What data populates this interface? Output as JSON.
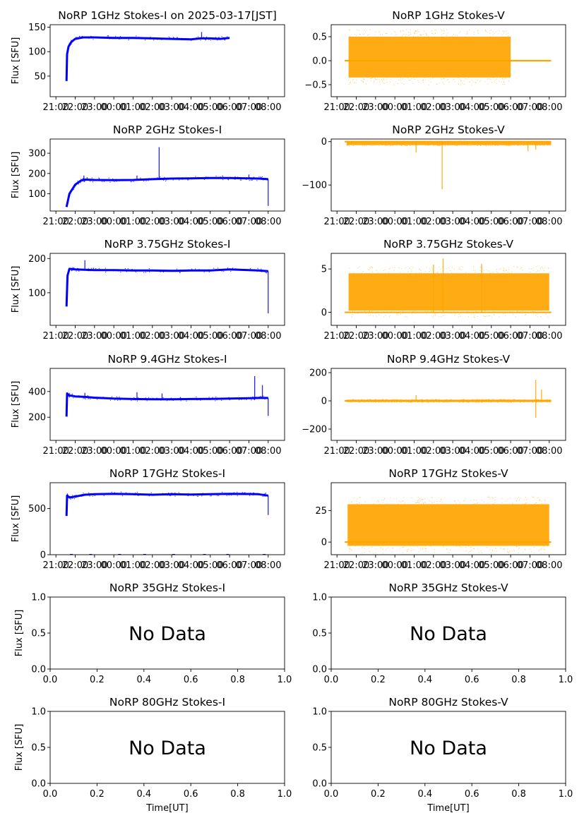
{
  "colors": {
    "stokes_i": "#0000ff",
    "stokes_v": "#ffa500"
  },
  "chart_data": [
    {
      "type": "scatter",
      "panel": "1GHz-I",
      "title": "NoRP 1GHz Stokes-I on 2025-03-17[JST]",
      "ylabel": "Flux [SFU]",
      "xlabel": "",
      "xlim": [
        -3.3,
        8.85
      ],
      "ylim": [
        8,
        155
      ],
      "yticks": [
        50,
        100,
        150
      ],
      "xtick_values": [
        -3,
        -2,
        -1,
        0,
        1,
        2,
        3,
        4,
        5,
        6,
        7,
        8
      ],
      "xtick_labels": [
        "21:00",
        "22:00",
        "23:00",
        "00:00",
        "01:00",
        "02:00",
        "03:00",
        "04:00",
        "05:00",
        "06:00",
        "07:00",
        "08:00"
      ],
      "series": [
        {
          "color": "#0000ff",
          "x": [
            -2.45,
            -2.42,
            -2.35,
            -2.2,
            -2.0,
            -1.6,
            -1.0,
            0,
            1,
            2,
            3,
            4,
            4.5,
            5,
            5.5,
            6.0
          ],
          "y": [
            40,
            95,
            110,
            120,
            126,
            129,
            129,
            128,
            128,
            127,
            126,
            125,
            127,
            127,
            126,
            128
          ]
        }
      ],
      "spikes": [
        {
          "x": 4.55,
          "y": 140
        }
      ]
    },
    {
      "type": "scatter",
      "panel": "1GHz-V",
      "title": "NoRP 1GHz Stokes-V",
      "ylabel": "",
      "xlabel": "",
      "xlim": [
        -3.3,
        8.85
      ],
      "ylim": [
        -0.75,
        0.75
      ],
      "yticks": [
        -0.5,
        0.0,
        0.5
      ],
      "ytick_labels": [
        "−0.5",
        "0.0",
        "0.5"
      ],
      "xtick_values": [
        -3,
        -2,
        -1,
        0,
        1,
        2,
        3,
        4,
        5,
        6,
        7,
        8
      ],
      "xtick_labels": [
        "21:00",
        "22:00",
        "23:00",
        "00:00",
        "01:00",
        "02:00",
        "03:00",
        "04:00",
        "05:00",
        "06:00",
        "07:00",
        "08:00"
      ],
      "band": {
        "color": "#ffa500",
        "x": [
          -2.4,
          6.0
        ],
        "y": [
          -0.35,
          0.5
        ],
        "baseline": 0.0,
        "baseline_x": [
          -2.6,
          8.1
        ]
      }
    },
    {
      "type": "scatter",
      "panel": "2GHz-I",
      "title": "NoRP 2GHz Stokes-I",
      "ylabel": "Flux [SFU]",
      "xlabel": "",
      "xlim": [
        -3.3,
        8.85
      ],
      "ylim": [
        15,
        370
      ],
      "yticks": [
        100,
        200,
        300
      ],
      "xtick_values": [
        -3,
        -2,
        -1,
        0,
        1,
        2,
        3,
        4,
        5,
        6,
        7,
        8
      ],
      "xtick_labels": [
        "21:00",
        "22:00",
        "23:00",
        "00:00",
        "01:00",
        "02:00",
        "03:00",
        "04:00",
        "05:00",
        "06:00",
        "07:00",
        "08:00"
      ],
      "series": [
        {
          "color": "#0000ff",
          "x": [
            -2.45,
            -2.3,
            -2.0,
            -1.7,
            -1.5,
            -1.0,
            0,
            1,
            2,
            3,
            4,
            5,
            6,
            7,
            7.5,
            8.0
          ],
          "y": [
            35,
            100,
            145,
            165,
            170,
            168,
            167,
            168,
            172,
            175,
            176,
            178,
            178,
            176,
            175,
            172
          ]
        }
      ],
      "spikes": [
        {
          "x": -1.55,
          "y": 190
        },
        {
          "x": 1.2,
          "y": 190
        },
        {
          "x": 2.35,
          "y": 330
        },
        {
          "x": 7.0,
          "y": 195
        },
        {
          "x": 8.0,
          "y": 40
        }
      ]
    },
    {
      "type": "scatter",
      "panel": "2GHz-V",
      "title": "NoRP 2GHz Stokes-V",
      "ylabel": "",
      "xlabel": "",
      "xlim": [
        -3.3,
        8.85
      ],
      "ylim": [
        -160,
        6
      ],
      "yticks": [
        -100,
        0
      ],
      "ytick_labels": [
        "−100",
        "0"
      ],
      "xtick_values": [
        -3,
        -2,
        -1,
        0,
        1,
        2,
        3,
        4,
        5,
        6,
        7,
        8
      ],
      "xtick_labels": [
        "21:00",
        "22:00",
        "23:00",
        "00:00",
        "01:00",
        "02:00",
        "03:00",
        "04:00",
        "05:00",
        "06:00",
        "07:00",
        "08:00"
      ],
      "band": {
        "color": "#ffa500",
        "x": [
          -2.5,
          8.1
        ],
        "y": [
          -8,
          0
        ],
        "baseline": 0,
        "baseline_x": [
          -2.6,
          8.1
        ]
      },
      "spikes": [
        {
          "x": 1.1,
          "y": -25
        },
        {
          "x": 2.45,
          "y": -110
        },
        {
          "x": 6.9,
          "y": -22
        },
        {
          "x": 7.3,
          "y": -18
        }
      ]
    },
    {
      "type": "scatter",
      "panel": "3.75GHz-I",
      "title": "NoRP 3.75GHz Stokes-I",
      "ylabel": "Flux [SFU]",
      "xlabel": "",
      "xlim": [
        -3.3,
        8.85
      ],
      "ylim": [
        5,
        215
      ],
      "yticks": [
        100,
        200
      ],
      "xtick_values": [
        -3,
        -2,
        -1,
        0,
        1,
        2,
        3,
        4,
        5,
        6,
        7,
        8
      ],
      "xtick_labels": [
        "21:00",
        "22:00",
        "23:00",
        "00:00",
        "01:00",
        "02:00",
        "03:00",
        "04:00",
        "05:00",
        "06:00",
        "07:00",
        "08:00"
      ],
      "series": [
        {
          "color": "#0000ff",
          "x": [
            -2.45,
            -2.4,
            -2.3,
            -2.0,
            -1.5,
            -1.0,
            0,
            1,
            2,
            3,
            4,
            5,
            6,
            7,
            7.5,
            8.0
          ],
          "y": [
            60,
            150,
            170,
            168,
            167,
            166,
            166,
            165,
            165,
            164,
            165,
            165,
            168,
            166,
            165,
            163
          ]
        }
      ],
      "spikes": [
        {
          "x": -1.5,
          "y": 195
        },
        {
          "x": 8.0,
          "y": 40
        }
      ]
    },
    {
      "type": "scatter",
      "panel": "3.75GHz-V",
      "title": "NoRP 3.75GHz Stokes-V",
      "ylabel": "",
      "xlabel": "",
      "xlim": [
        -3.3,
        8.85
      ],
      "ylim": [
        -1.5,
        6.8
      ],
      "yticks": [
        0,
        5
      ],
      "xtick_values": [
        -3,
        -2,
        -1,
        0,
        1,
        2,
        3,
        4,
        5,
        6,
        7,
        8
      ],
      "xtick_labels": [
        "21:00",
        "22:00",
        "23:00",
        "00:00",
        "01:00",
        "02:00",
        "03:00",
        "04:00",
        "05:00",
        "06:00",
        "07:00",
        "08:00"
      ],
      "band": {
        "color": "#ffa500",
        "x": [
          -2.4,
          8.0
        ],
        "y": [
          0.2,
          4.5
        ],
        "baseline": 0,
        "baseline_x": [
          -2.6,
          8.1
        ]
      },
      "spikes": [
        {
          "x": 2.5,
          "y": 6.2
        },
        {
          "x": 2.0,
          "y": 5.5
        },
        {
          "x": 4.5,
          "y": 5.6
        }
      ]
    },
    {
      "type": "scatter",
      "panel": "9.4GHz-I",
      "title": "NoRP 9.4GHz Stokes-I",
      "ylabel": "Flux [SFU]",
      "xlabel": "",
      "xlim": [
        -3.3,
        8.85
      ],
      "ylim": [
        20,
        580
      ],
      "yticks": [
        200,
        400
      ],
      "xtick_values": [
        -3,
        -2,
        -1,
        0,
        1,
        2,
        3,
        4,
        5,
        6,
        7,
        8
      ],
      "xtick_labels": [
        "21:00",
        "22:00",
        "23:00",
        "00:00",
        "01:00",
        "02:00",
        "03:00",
        "04:00",
        "05:00",
        "06:00",
        "07:00",
        "08:00"
      ],
      "series": [
        {
          "color": "#0000ff",
          "x": [
            -2.45,
            -2.42,
            -2.3,
            -2.0,
            -1.5,
            -1.0,
            0,
            1,
            2,
            3,
            4,
            5,
            6,
            7,
            7.5,
            8.0
          ],
          "y": [
            205,
            385,
            370,
            362,
            358,
            352,
            345,
            342,
            340,
            340,
            342,
            343,
            345,
            348,
            350,
            350
          ]
        }
      ],
      "spikes": [
        {
          "x": -1.5,
          "y": 390
        },
        {
          "x": 1.2,
          "y": 395
        },
        {
          "x": 2.5,
          "y": 385
        },
        {
          "x": 7.3,
          "y": 520
        },
        {
          "x": 7.7,
          "y": 450
        },
        {
          "x": 8.0,
          "y": 210
        }
      ]
    },
    {
      "type": "scatter",
      "panel": "9.4GHz-V",
      "title": "NoRP 9.4GHz Stokes-V",
      "ylabel": "",
      "xlabel": "",
      "xlim": [
        -3.3,
        8.85
      ],
      "ylim": [
        -280,
        230
      ],
      "yticks": [
        -200,
        0,
        200
      ],
      "ytick_labels": [
        "−200",
        "0",
        "200"
      ],
      "xtick_values": [
        -3,
        -2,
        -1,
        0,
        1,
        2,
        3,
        4,
        5,
        6,
        7,
        8
      ],
      "xtick_labels": [
        "21:00",
        "22:00",
        "23:00",
        "00:00",
        "01:00",
        "02:00",
        "03:00",
        "04:00",
        "05:00",
        "06:00",
        "07:00",
        "08:00"
      ],
      "band": {
        "color": "#ffa500",
        "x": [
          -2.5,
          8.1
        ],
        "y": [
          -8,
          8
        ],
        "baseline": 0,
        "baseline_x": [
          -2.6,
          8.1
        ]
      },
      "spikes": [
        {
          "x": 7.3,
          "y": 150
        },
        {
          "x": 7.3,
          "y": -120
        },
        {
          "x": 7.6,
          "y": 80
        },
        {
          "x": 1.1,
          "y": 40
        }
      ]
    },
    {
      "type": "scatter",
      "panel": "17GHz-I",
      "title": "NoRP 17GHz Stokes-I",
      "ylabel": "Flux [SFU]",
      "xlabel": "",
      "xlim": [
        -3.3,
        8.85
      ],
      "ylim": [
        0,
        780
      ],
      "yticks": [
        0,
        500
      ],
      "xtick_values": [
        -3,
        -2,
        -1,
        0,
        1,
        2,
        3,
        4,
        5,
        6,
        7,
        8
      ],
      "xtick_labels": [
        "21:00",
        "22:00",
        "23:00",
        "00:00",
        "01:00",
        "02:00",
        "03:00",
        "04:00",
        "05:00",
        "06:00",
        "07:00",
        "08:00"
      ],
      "series": [
        {
          "color": "#0000ff",
          "x": [
            -2.45,
            -2.42,
            -2.3,
            -2.0,
            -1.5,
            -1.0,
            0,
            1,
            2,
            3,
            4,
            5,
            6,
            7,
            7.5,
            8.0
          ],
          "y": [
            420,
            640,
            620,
            630,
            650,
            655,
            660,
            655,
            650,
            655,
            652,
            655,
            660,
            658,
            655,
            640
          ]
        }
      ],
      "spikes": [
        {
          "x": 8.0,
          "y": 430
        }
      ],
      "zero_dots": [
        -2.2,
        -1.2,
        0.3,
        1.6,
        3.1,
        4.7,
        5.9,
        7.8
      ]
    },
    {
      "type": "scatter",
      "panel": "17GHz-V",
      "title": "NoRP 17GHz Stokes-V",
      "ylabel": "",
      "xlabel": "",
      "xlim": [
        -3.3,
        8.85
      ],
      "ylim": [
        -10,
        47
      ],
      "yticks": [
        0,
        25
      ],
      "xtick_values": [
        -3,
        -2,
        -1,
        0,
        1,
        2,
        3,
        4,
        5,
        6,
        7,
        8
      ],
      "xtick_labels": [
        "21:00",
        "22:00",
        "23:00",
        "00:00",
        "01:00",
        "02:00",
        "03:00",
        "04:00",
        "05:00",
        "06:00",
        "07:00",
        "08:00"
      ],
      "band": {
        "color": "#ffa500",
        "x": [
          -2.45,
          8.0
        ],
        "y": [
          -3,
          30
        ],
        "baseline": 0,
        "baseline_x": [
          -2.6,
          8.1
        ]
      }
    },
    {
      "type": "scatter",
      "panel": "35GHz-I",
      "title": "NoRP 35GHz Stokes-I",
      "ylabel": "Flux [SFU]",
      "xlabel": "",
      "xlim": [
        0,
        1
      ],
      "ylim": [
        0,
        1
      ],
      "yticks": [
        0.0,
        0.5,
        1.0
      ],
      "ytick_labels": [
        "0.0",
        "0.5",
        "1.0"
      ],
      "xtick_values": [
        0,
        0.2,
        0.4,
        0.6,
        0.8,
        1.0
      ],
      "xtick_labels": [
        "0.0",
        "0.2",
        "0.4",
        "0.6",
        "0.8",
        "1.0"
      ],
      "no_data": "No Data"
    },
    {
      "type": "scatter",
      "panel": "35GHz-V",
      "title": "NoRP 35GHz Stokes-V",
      "ylabel": "",
      "xlabel": "",
      "xlim": [
        0,
        1
      ],
      "ylim": [
        0,
        1
      ],
      "yticks": [
        0.0,
        0.5,
        1.0
      ],
      "ytick_labels": [
        "0.0",
        "0.5",
        "1.0"
      ],
      "xtick_values": [
        0,
        0.2,
        0.4,
        0.6,
        0.8,
        1.0
      ],
      "xtick_labels": [
        "0.0",
        "0.2",
        "0.4",
        "0.6",
        "0.8",
        "1.0"
      ],
      "no_data": "No Data"
    },
    {
      "type": "scatter",
      "panel": "80GHz-I",
      "title": "NoRP 80GHz Stokes-I",
      "ylabel": "Flux [SFU]",
      "xlabel": "Time[UT]",
      "xlim": [
        0,
        1
      ],
      "ylim": [
        0,
        1
      ],
      "yticks": [
        0.0,
        0.5,
        1.0
      ],
      "ytick_labels": [
        "0.0",
        "0.5",
        "1.0"
      ],
      "xtick_values": [
        0,
        0.2,
        0.4,
        0.6,
        0.8,
        1.0
      ],
      "xtick_labels": [
        "0.0",
        "0.2",
        "0.4",
        "0.6",
        "0.8",
        "1.0"
      ],
      "no_data": "No Data"
    },
    {
      "type": "scatter",
      "panel": "80GHz-V",
      "title": "NoRP 80GHz Stokes-V",
      "ylabel": "",
      "xlabel": "Time[UT]",
      "xlim": [
        0,
        1
      ],
      "ylim": [
        0,
        1
      ],
      "yticks": [
        0.0,
        0.5,
        1.0
      ],
      "ytick_labels": [
        "0.0",
        "0.5",
        "1.0"
      ],
      "xtick_values": [
        0,
        0.2,
        0.4,
        0.6,
        0.8,
        1.0
      ],
      "xtick_labels": [
        "0.0",
        "0.2",
        "0.4",
        "0.6",
        "0.8",
        "1.0"
      ],
      "no_data": "No Data"
    }
  ]
}
